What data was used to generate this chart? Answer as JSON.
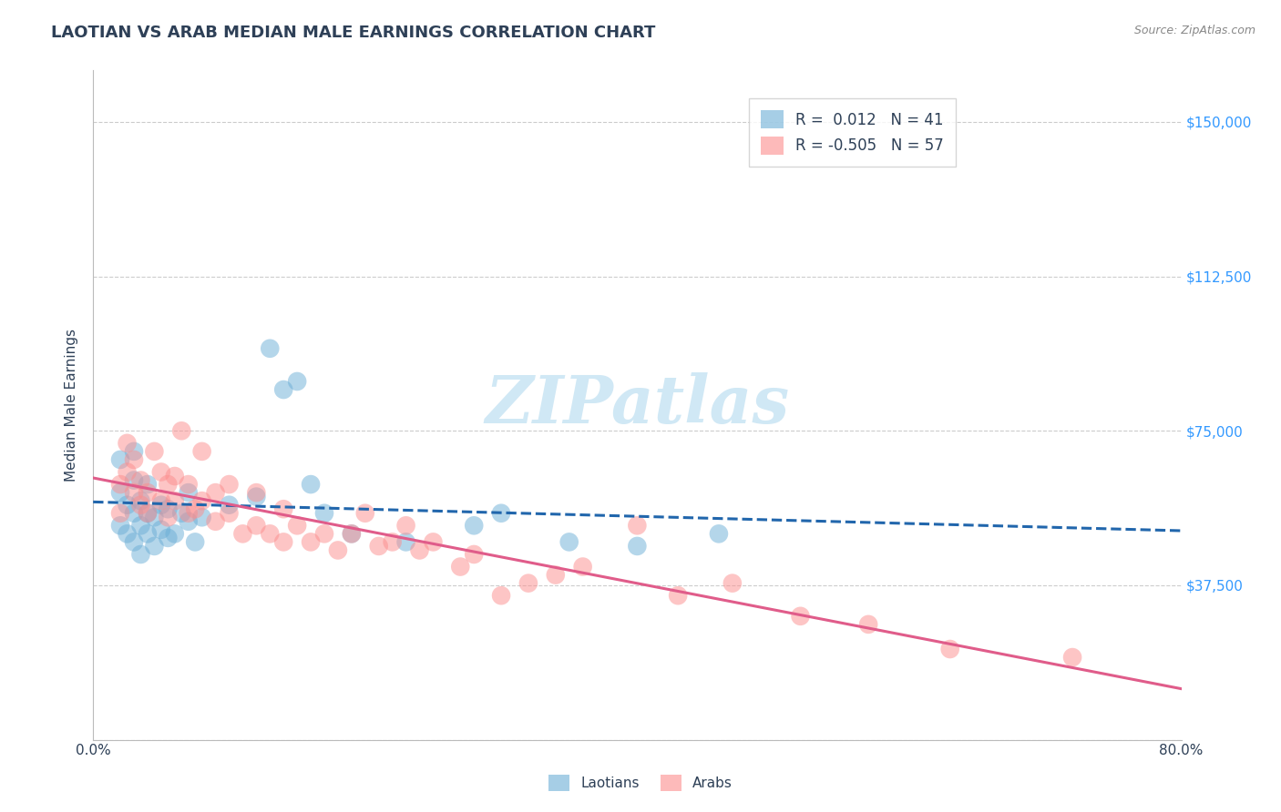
{
  "title": "LAOTIAN VS ARAB MEDIAN MALE EARNINGS CORRELATION CHART",
  "source_text": "Source: ZipAtlas.com",
  "xlabel": "",
  "ylabel": "Median Male Earnings",
  "x_min": 0.0,
  "x_max": 0.8,
  "y_min": 0,
  "y_max": 162500,
  "x_ticks": [
    0.0,
    0.8
  ],
  "x_tick_labels": [
    "0.0%",
    "80.0%"
  ],
  "y_ticks": [
    0,
    37500,
    75000,
    112500,
    150000
  ],
  "y_tick_labels": [
    "",
    "$37,500",
    "$75,000",
    "$112,500",
    "$150,000"
  ],
  "title_color": "#2E4057",
  "title_fontsize": 13,
  "source_fontsize": 9,
  "source_color": "#888888",
  "axis_label_color": "#2E4057",
  "tick_color": "#2E4057",
  "grid_color": "#cccccc",
  "watermark_text": "ZIPatlas",
  "watermark_color": "#d0e8f5",
  "laotian_color": "#6baed6",
  "arab_color": "#fc8d8d",
  "laotian_line_color": "#2166ac",
  "arab_line_color": "#e05c8a",
  "legend_laotian_label": "Laotians",
  "legend_arab_label": "Arabs",
  "laotian_R": "0.012",
  "laotian_N": "41",
  "arab_R": "-0.505",
  "arab_N": "57",
  "right_tick_color": "#3399ff",
  "laotian_x": [
    0.02,
    0.02,
    0.02,
    0.025,
    0.025,
    0.03,
    0.03,
    0.03,
    0.03,
    0.035,
    0.035,
    0.035,
    0.04,
    0.04,
    0.04,
    0.045,
    0.045,
    0.05,
    0.05,
    0.055,
    0.055,
    0.06,
    0.065,
    0.07,
    0.07,
    0.075,
    0.08,
    0.1,
    0.12,
    0.13,
    0.14,
    0.15,
    0.16,
    0.17,
    0.19,
    0.23,
    0.28,
    0.3,
    0.35,
    0.4,
    0.46
  ],
  "laotian_y": [
    52000,
    60000,
    68000,
    50000,
    57000,
    48000,
    55000,
    63000,
    70000,
    45000,
    52000,
    58000,
    50000,
    55000,
    62000,
    47000,
    54000,
    51000,
    57000,
    49000,
    56000,
    50000,
    55000,
    53000,
    60000,
    48000,
    54000,
    57000,
    59000,
    95000,
    85000,
    87000,
    62000,
    55000,
    50000,
    48000,
    52000,
    55000,
    48000,
    47000,
    50000
  ],
  "arab_x": [
    0.02,
    0.02,
    0.025,
    0.025,
    0.03,
    0.03,
    0.035,
    0.035,
    0.04,
    0.04,
    0.045,
    0.05,
    0.05,
    0.055,
    0.055,
    0.06,
    0.06,
    0.065,
    0.07,
    0.07,
    0.075,
    0.08,
    0.08,
    0.09,
    0.09,
    0.1,
    0.1,
    0.11,
    0.12,
    0.12,
    0.13,
    0.14,
    0.14,
    0.15,
    0.16,
    0.17,
    0.18,
    0.19,
    0.2,
    0.21,
    0.22,
    0.23,
    0.24,
    0.25,
    0.27,
    0.28,
    0.3,
    0.32,
    0.34,
    0.36,
    0.4,
    0.43,
    0.47,
    0.52,
    0.57,
    0.63,
    0.72
  ],
  "arab_y": [
    55000,
    62000,
    65000,
    72000,
    60000,
    68000,
    57000,
    63000,
    55000,
    60000,
    70000,
    58000,
    65000,
    54000,
    62000,
    58000,
    64000,
    75000,
    55000,
    62000,
    56000,
    58000,
    70000,
    53000,
    60000,
    55000,
    62000,
    50000,
    52000,
    60000,
    50000,
    48000,
    56000,
    52000,
    48000,
    50000,
    46000,
    50000,
    55000,
    47000,
    48000,
    52000,
    46000,
    48000,
    42000,
    45000,
    35000,
    38000,
    40000,
    42000,
    52000,
    35000,
    38000,
    30000,
    28000,
    22000,
    20000
  ]
}
